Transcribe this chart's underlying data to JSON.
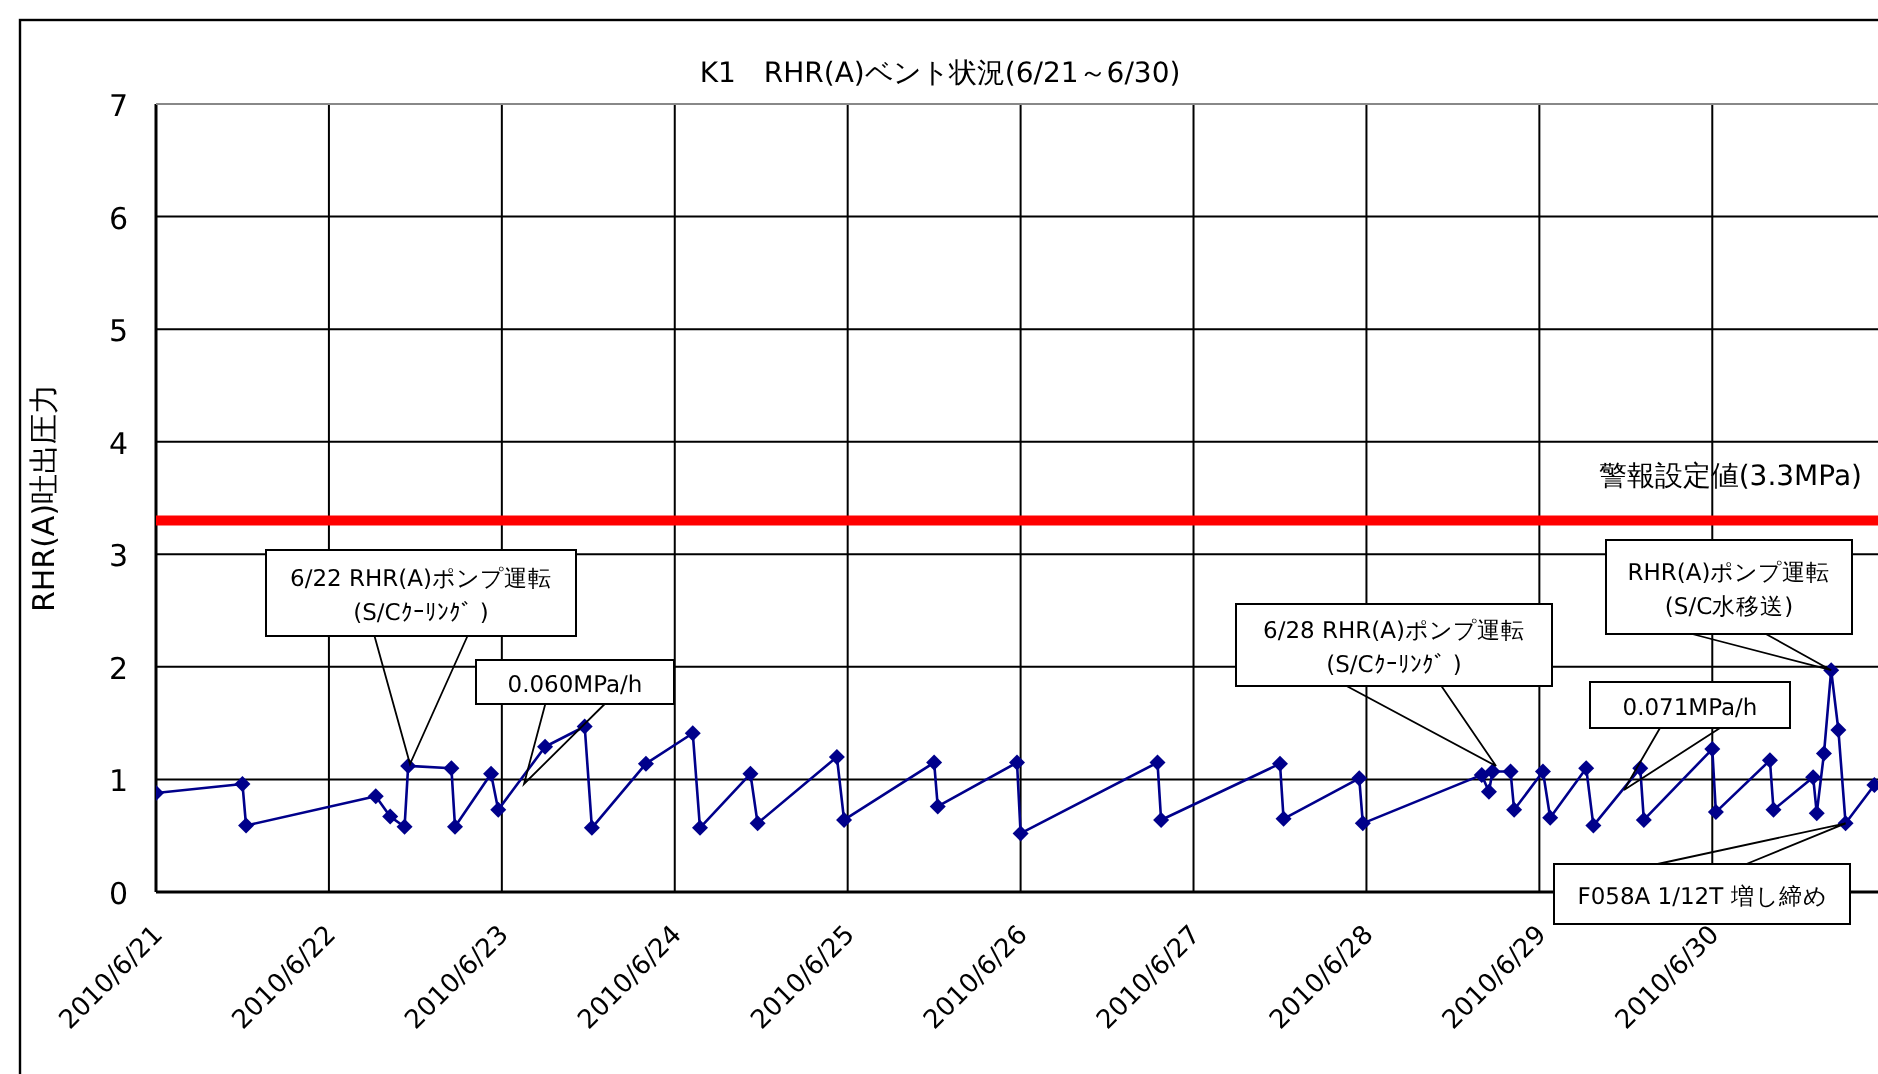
{
  "chart_data": {
    "type": "line",
    "title": "K1　RHR(A)ベント状況(6/21～6/30)",
    "ylabel": "RHR(A)吐出圧力",
    "x": [
      "2010-06-21T00:00",
      "2010-06-21T12:00",
      "2010-06-21T12:30",
      "2010-06-22T06:30",
      "2010-06-22T08:30",
      "2010-06-22T10:30",
      "2010-06-22T11:00",
      "2010-06-22T17:00",
      "2010-06-22T17:30",
      "2010-06-22T22:30",
      "2010-06-22T23:30",
      "2010-06-23T06:00",
      "2010-06-23T11:30",
      "2010-06-23T12:30",
      "2010-06-23T20:00",
      "2010-06-24T02:30",
      "2010-06-24T03:30",
      "2010-06-24T10:30",
      "2010-06-24T11:30",
      "2010-06-24T22:30",
      "2010-06-24T23:30",
      "2010-06-25T12:00",
      "2010-06-25T12:30",
      "2010-06-25T23:30",
      "2010-06-26T00:00",
      "2010-06-26T19:00",
      "2010-06-26T19:30",
      "2010-06-27T12:00",
      "2010-06-27T12:30",
      "2010-06-27T23:00",
      "2010-06-27T23:30",
      "2010-06-28T16:00",
      "2010-06-28T17:00",
      "2010-06-28T17:30",
      "2010-06-28T20:00",
      "2010-06-28T20:30",
      "2010-06-29T00:30",
      "2010-06-29T01:30",
      "2010-06-29T06:30",
      "2010-06-29T07:30",
      "2010-06-29T14:00",
      "2010-06-29T14:30",
      "2010-06-30T00:00",
      "2010-06-30T00:30",
      "2010-06-30T08:00",
      "2010-06-30T08:30",
      "2010-06-30T14:00",
      "2010-06-30T14:30",
      "2010-06-30T15:30",
      "2010-06-30T16:30",
      "2010-06-30T17:30",
      "2010-06-30T18:30",
      "2010-06-30T22:30"
    ],
    "series": [
      {
        "color": "#00008b",
        "values": [
          0.88,
          0.96,
          0.59,
          0.85,
          0.67,
          0.58,
          1.12,
          1.1,
          0.58,
          1.05,
          0.73,
          1.29,
          1.47,
          0.57,
          1.14,
          1.41,
          0.57,
          1.05,
          0.61,
          1.2,
          0.64,
          1.15,
          0.76,
          1.15,
          0.52,
          1.15,
          0.64,
          1.14,
          0.65,
          1.01,
          0.61,
          1.04,
          0.89,
          1.07,
          1.07,
          0.73,
          1.07,
          0.66,
          1.1,
          0.59,
          1.1,
          0.64,
          1.27,
          0.71,
          1.17,
          0.73,
          1.02,
          0.7,
          1.23,
          1.97,
          1.44,
          0.61,
          0.95
        ]
      }
    ],
    "xlim": [
      "2010-06-21",
      "2010-06-30T23:00"
    ],
    "xticks": [
      {
        "value": "2010-06-21",
        "label": "2010/6/21"
      },
      {
        "value": "2010-06-22",
        "label": "2010/6/22"
      },
      {
        "value": "2010-06-23",
        "label": "2010/6/23"
      },
      {
        "value": "2010-06-24",
        "label": "2010/6/24"
      },
      {
        "value": "2010-06-25",
        "label": "2010/6/25"
      },
      {
        "value": "2010-06-26",
        "label": "2010/6/26"
      },
      {
        "value": "2010-06-27",
        "label": "2010/6/27"
      },
      {
        "value": "2010-06-28",
        "label": "2010/6/28"
      },
      {
        "value": "2010-06-29",
        "label": "2010/6/29"
      },
      {
        "value": "2010-06-30",
        "label": "2010/6/30"
      }
    ],
    "ylim": [
      0,
      7
    ],
    "yticks": [
      0,
      1,
      2,
      3,
      4,
      5,
      6,
      7
    ],
    "grid": true,
    "marker": "diamond",
    "ref_lines": [
      {
        "axis": "y",
        "value": 3.3,
        "label": "警報設定値(3.3MPa)",
        "color": "#ff0000"
      }
    ],
    "annotations": [
      "6/22 RHR(A)ポンプ運転\n(S/Cｸｰﾘﾝｸﾞ )",
      "0.060MPa/h",
      "6/28 RHR(A)ポンプ運転\n(S/Cｸｰﾘﾝｸﾞ )",
      "0.071MPa/h",
      {
        "text": "RHR(A)ポンプ運転\n(S/C水移送)",
        "x": "2010-06-30T16:30",
        "y": 1.97
      },
      {
        "text": "F058A 1/12T 増し締め",
        "x": "2010-06-30T18:30",
        "y": 0.61
      }
    ]
  }
}
